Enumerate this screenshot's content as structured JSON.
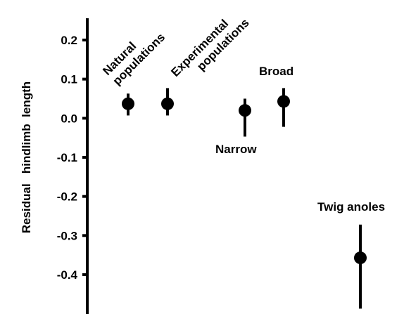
{
  "chart_data": {
    "type": "scatter",
    "title": "",
    "xlabel": "",
    "ylabel": "Residual   hindlimb  length",
    "ylim": [
      -0.49,
      0.265
    ],
    "yticks": [
      {
        "value": 0.2,
        "label": "0.2"
      },
      {
        "value": 0.1,
        "label": "0.1"
      },
      {
        "value": 0.0,
        "label": "0.0"
      },
      {
        "value": -0.1,
        "label": "-0.1"
      },
      {
        "value": -0.2,
        "label": "-0.2"
      },
      {
        "value": -0.3,
        "label": "-0.3"
      },
      {
        "value": -0.4,
        "label": "-0.4"
      }
    ],
    "grid": false,
    "points": [
      {
        "label": "Natural populations",
        "y": 0.037,
        "low": 0.007,
        "high": 0.063
      },
      {
        "label": "Experimental populations",
        "y": 0.037,
        "low": 0.007,
        "high": 0.077
      },
      {
        "label": "Narrow",
        "y": 0.02,
        "low": -0.047,
        "high": 0.05
      },
      {
        "label": "Broad",
        "y": 0.043,
        "low": -0.022,
        "high": 0.077
      },
      {
        "label": "Twig anoles",
        "y": -0.357,
        "low": -0.487,
        "high": -0.272
      }
    ],
    "annotations": {
      "natural": [
        "Natural",
        "populations"
      ],
      "experimental": [
        "Experimental",
        "populations"
      ],
      "narrow": "Narrow",
      "broad": "Broad",
      "twig": "Twig anoles"
    }
  }
}
